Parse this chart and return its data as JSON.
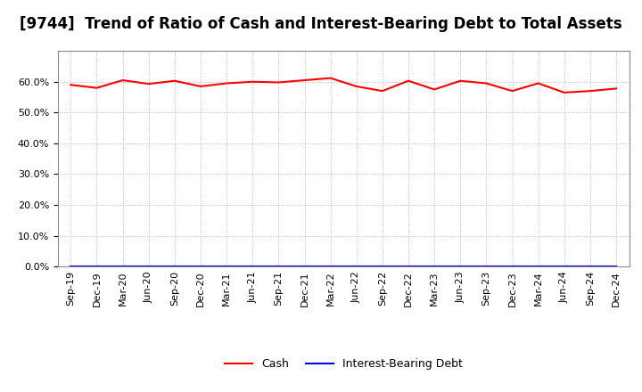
{
  "title": "[9744]  Trend of Ratio of Cash and Interest-Bearing Debt to Total Assets",
  "x_labels": [
    "Sep-19",
    "Dec-19",
    "Mar-20",
    "Jun-20",
    "Sep-20",
    "Dec-20",
    "Mar-21",
    "Jun-21",
    "Sep-21",
    "Dec-21",
    "Mar-22",
    "Jun-22",
    "Sep-22",
    "Dec-22",
    "Mar-23",
    "Jun-23",
    "Sep-23",
    "Dec-23",
    "Mar-24",
    "Jun-24",
    "Sep-24",
    "Dec-24"
  ],
  "cash_values": [
    59.0,
    58.0,
    60.5,
    59.3,
    60.3,
    58.5,
    59.5,
    60.0,
    59.8,
    60.5,
    61.2,
    58.5,
    57.0,
    60.3,
    57.5,
    60.3,
    59.5,
    57.0,
    59.5,
    56.5,
    57.0,
    57.8
  ],
  "ibd_values": [
    0.0,
    0.0,
    0.0,
    0.0,
    0.0,
    0.0,
    0.0,
    0.0,
    0.0,
    0.0,
    0.0,
    0.0,
    0.0,
    0.0,
    0.0,
    0.0,
    0.0,
    0.0,
    0.0,
    0.0,
    0.0,
    0.0
  ],
  "cash_color": "#FF0000",
  "ibd_color": "#0000FF",
  "background_color": "#FFFFFF",
  "plot_bg_color": "#FFFFFF",
  "grid_color": "#AAAAAA",
  "ylim": [
    0.0,
    70.0
  ],
  "yticks": [
    0.0,
    10.0,
    20.0,
    30.0,
    40.0,
    50.0,
    60.0
  ],
  "title_fontsize": 12,
  "axis_fontsize": 8,
  "legend_fontsize": 9
}
